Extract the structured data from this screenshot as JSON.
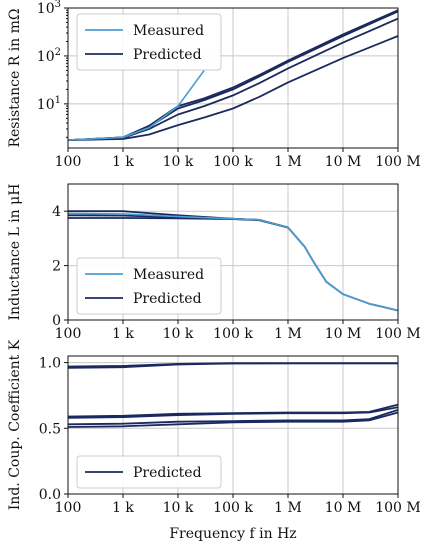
{
  "colors": {
    "measured": "#4a9fd4",
    "predicted": "#1b2a5e"
  },
  "chart_data": [
    {
      "type": "line",
      "ylabel": "Resistance R in mΩ",
      "xscale": "log",
      "yscale": "log",
      "xlim": [
        100,
        100000000
      ],
      "ylim": [
        1.2,
        1000
      ],
      "xticks": [
        100,
        1000,
        10000,
        100000,
        1000000,
        10000000,
        100000000
      ],
      "xticklabels": [
        "100",
        "1 k",
        "10 k",
        "100 k",
        "1 M",
        "10 M",
        "100 M"
      ],
      "yticks": [
        10,
        100,
        1000
      ],
      "yticklabels": [
        "10¹",
        "10²",
        "10³"
      ],
      "grid": true,
      "legend": {
        "position": "top-left",
        "entries": [
          "Measured",
          "Predicted"
        ]
      },
      "series": [
        {
          "name": "Measured",
          "color": "#4a9fd4",
          "x": [
            100,
            1000,
            3000,
            10000,
            30000
          ],
          "y": [
            1.75,
            2.0,
            3.2,
            9.0,
            50
          ]
        },
        {
          "name": "Predicted",
          "color": "#1b2a5e",
          "x": [
            100,
            1000,
            3000,
            10000,
            30000,
            100000,
            300000,
            1000000,
            10000000,
            100000000
          ],
          "y": [
            1.75,
            2.0,
            3.5,
            9.0,
            13,
            22,
            40,
            80,
            280,
            900
          ]
        },
        {
          "color": "#1b2a5e",
          "x": [
            100,
            1000,
            3000,
            10000,
            30000,
            100000,
            300000,
            1000000,
            10000000,
            100000000
          ],
          "y": [
            1.75,
            2.0,
            3.3,
            8.0,
            12,
            20,
            37,
            75,
            260,
            850
          ]
        },
        {
          "color": "#1b2a5e",
          "x": [
            100,
            1000,
            3000,
            10000,
            30000,
            100000,
            300000,
            1000000,
            10000000,
            100000000
          ],
          "y": [
            1.75,
            1.95,
            3.0,
            6.0,
            9,
            15,
            27,
            55,
            190,
            600
          ]
        },
        {
          "color": "#1b2a5e",
          "x": [
            100,
            1000,
            3000,
            10000,
            30000,
            100000,
            300000,
            1000000,
            10000000,
            100000000
          ],
          "y": [
            1.75,
            1.85,
            2.3,
            3.6,
            5.2,
            8,
            14,
            28,
            90,
            260
          ]
        }
      ]
    },
    {
      "type": "line",
      "ylabel": "Inductance L in μH",
      "xscale": "log",
      "xlim": [
        100,
        100000000
      ],
      "ylim": [
        0,
        5
      ],
      "xticks": [
        100,
        1000,
        10000,
        100000,
        1000000,
        10000000,
        100000000
      ],
      "xticklabels": [
        "100",
        "1 k",
        "10 k",
        "100 k",
        "1 M",
        "10 M",
        "100 M"
      ],
      "yticks": [
        0,
        2,
        4
      ],
      "yticklabels": [
        "0",
        "2",
        "4"
      ],
      "grid": true,
      "legend": {
        "position": "bottom-left",
        "entries": [
          "Measured",
          "Predicted"
        ]
      },
      "series": [
        {
          "name": "Measured",
          "color": "#4a9fd4",
          "x": [
            100,
            1000,
            10000,
            100000,
            300000,
            1000000,
            2000000,
            3000000,
            5000000,
            10000000,
            30000000,
            100000000
          ],
          "y": [
            3.92,
            3.9,
            3.8,
            3.72,
            3.68,
            3.4,
            2.7,
            2.1,
            1.4,
            0.95,
            0.6,
            0.35
          ]
        },
        {
          "name": "Predicted",
          "color": "#1b2a5e",
          "x": [
            100,
            1000,
            10000,
            100000,
            300000,
            1000000,
            2000000,
            3000000,
            5000000,
            10000000,
            30000000,
            100000000
          ],
          "y": [
            4.0,
            4.0,
            3.85,
            3.72,
            3.68,
            3.4,
            2.7,
            2.1,
            1.4,
            0.95,
            0.6,
            0.35
          ]
        },
        {
          "color": "#1b2a5e",
          "x": [
            100,
            1000,
            10000,
            100000,
            300000,
            1000000
          ],
          "y": [
            3.85,
            3.84,
            3.78,
            3.72,
            3.68,
            3.4
          ]
        },
        {
          "color": "#1b2a5e",
          "x": [
            100,
            1000,
            10000,
            100000,
            300000,
            1000000
          ],
          "y": [
            3.75,
            3.75,
            3.74,
            3.71,
            3.67,
            3.4
          ]
        }
      ]
    },
    {
      "type": "line",
      "xlabel": "Frequency f in Hz",
      "ylabel": "Ind. Coup. Coefficient K",
      "xscale": "log",
      "xlim": [
        100,
        100000000
      ],
      "ylim": [
        0,
        1.05
      ],
      "xticks": [
        100,
        1000,
        10000,
        100000,
        1000000,
        10000000,
        100000000
      ],
      "xticklabels": [
        "100",
        "1 k",
        "10 k",
        "100 k",
        "1 M",
        "10 M",
        "100 M"
      ],
      "yticks": [
        0,
        0.5,
        1.0
      ],
      "yticklabels": [
        "0.0",
        "0.5",
        "1.0"
      ],
      "grid": true,
      "legend": {
        "position": "bottom-left",
        "entries": [
          "Predicted"
        ]
      },
      "series": [
        {
          "name": "Predicted",
          "color": "#1b2a5e",
          "x": [
            100,
            1000,
            10000,
            100000,
            1000000,
            10000000,
            100000000
          ],
          "y": [
            0.97,
            0.975,
            0.99,
            0.995,
            0.995,
            0.995,
            0.995
          ]
        },
        {
          "color": "#1b2a5e",
          "x": [
            100,
            1000,
            10000,
            100000,
            1000000,
            10000000,
            100000000
          ],
          "y": [
            0.96,
            0.965,
            0.985,
            0.993,
            0.994,
            0.994,
            0.994
          ]
        },
        {
          "color": "#1b2a5e",
          "x": [
            100,
            1000,
            10000,
            100000,
            1000000,
            10000000,
            30000000,
            100000000
          ],
          "y": [
            0.59,
            0.595,
            0.61,
            0.615,
            0.62,
            0.62,
            0.625,
            0.68
          ]
        },
        {
          "color": "#1b2a5e",
          "x": [
            100,
            1000,
            10000,
            100000,
            1000000,
            10000000,
            30000000,
            100000000
          ],
          "y": [
            0.58,
            0.585,
            0.6,
            0.61,
            0.615,
            0.615,
            0.62,
            0.66
          ]
        },
        {
          "color": "#1b2a5e",
          "x": [
            100,
            1000,
            10000,
            100000,
            1000000,
            10000000,
            30000000,
            100000000
          ],
          "y": [
            0.53,
            0.535,
            0.55,
            0.555,
            0.56,
            0.56,
            0.57,
            0.64
          ]
        },
        {
          "color": "#1b2a5e",
          "x": [
            100,
            1000,
            10000,
            100000,
            1000000,
            10000000,
            30000000,
            100000000
          ],
          "y": [
            0.51,
            0.515,
            0.53,
            0.545,
            0.55,
            0.55,
            0.56,
            0.62
          ]
        }
      ]
    }
  ]
}
